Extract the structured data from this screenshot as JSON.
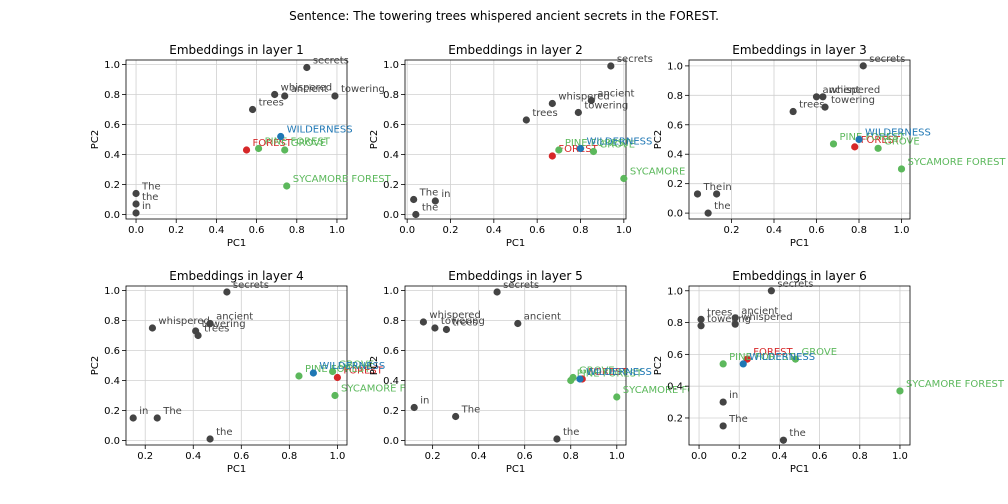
{
  "suptitle": "Sentence: The towering trees whispered ancient secrets in the FOREST.",
  "colors": {
    "other": "#444444",
    "target": "#d62728",
    "related": "#5cb85c",
    "wilderness": "#1f77b4",
    "grid": "#d0d0d0"
  },
  "chart_data": [
    {
      "type": "scatter",
      "title": "Embeddings in layer 1",
      "xlabel": "PC1",
      "ylabel": "PC2",
      "xlim": [
        -0.05,
        1.05
      ],
      "ylim": [
        -0.03,
        1.03
      ],
      "xticks": [
        "0.0",
        "0.2",
        "0.4",
        "0.6",
        "0.8",
        "1.0"
      ],
      "yticks": [
        "0.0",
        "0.2",
        "0.4",
        "0.6",
        "0.8",
        "1.0"
      ],
      "grid": true,
      "points": [
        {
          "word": "The",
          "x": 0.0,
          "y": 0.14,
          "kind": "other"
        },
        {
          "word": "the",
          "x": 0.0,
          "y": 0.07,
          "kind": "other"
        },
        {
          "word": "in",
          "x": 0.0,
          "y": 0.01,
          "kind": "other"
        },
        {
          "word": "towering",
          "x": 0.99,
          "y": 0.79,
          "kind": "other"
        },
        {
          "word": "trees",
          "x": 0.58,
          "y": 0.7,
          "kind": "other"
        },
        {
          "word": "whispered",
          "x": 0.69,
          "y": 0.8,
          "kind": "other"
        },
        {
          "word": "ancient",
          "x": 0.74,
          "y": 0.79,
          "kind": "other"
        },
        {
          "word": "secrets",
          "x": 0.85,
          "y": 0.98,
          "kind": "other"
        },
        {
          "word": "FOREST",
          "x": 0.55,
          "y": 0.43,
          "kind": "target"
        },
        {
          "word": "PINE FOREST",
          "x": 0.61,
          "y": 0.44,
          "kind": "related"
        },
        {
          "word": "GROVE",
          "x": 0.74,
          "y": 0.43,
          "kind": "related"
        },
        {
          "word": "WILDERNESS",
          "x": 0.72,
          "y": 0.52,
          "kind": "wilderness"
        },
        {
          "word": "SYCAMORE FOREST",
          "x": 0.75,
          "y": 0.19,
          "kind": "related"
        }
      ]
    },
    {
      "type": "scatter",
      "title": "Embeddings in layer 2",
      "xlabel": "PC1",
      "ylabel": "PC2",
      "xlim": [
        -0.01,
        1.01
      ],
      "ylim": [
        -0.03,
        1.03
      ],
      "xticks": [
        "0.0",
        "0.2",
        "0.4",
        "0.6",
        "0.8",
        "1.0"
      ],
      "yticks": [
        "0.0",
        "0.2",
        "0.4",
        "0.6",
        "0.8",
        "1.0"
      ],
      "grid": true,
      "points": [
        {
          "word": "The",
          "x": 0.03,
          "y": 0.1,
          "kind": "other"
        },
        {
          "word": "in",
          "x": 0.13,
          "y": 0.09,
          "kind": "other"
        },
        {
          "word": "the",
          "x": 0.04,
          "y": 0.0,
          "kind": "other"
        },
        {
          "word": "trees",
          "x": 0.55,
          "y": 0.63,
          "kind": "other"
        },
        {
          "word": "whispered",
          "x": 0.67,
          "y": 0.74,
          "kind": "other"
        },
        {
          "word": "ancient",
          "x": 0.85,
          "y": 0.76,
          "kind": "other"
        },
        {
          "word": "towering",
          "x": 0.79,
          "y": 0.68,
          "kind": "other"
        },
        {
          "word": "secrets",
          "x": 0.94,
          "y": 0.99,
          "kind": "other"
        },
        {
          "word": "FOREST",
          "x": 0.67,
          "y": 0.39,
          "kind": "target"
        },
        {
          "word": "PINE FOREST",
          "x": 0.7,
          "y": 0.43,
          "kind": "related"
        },
        {
          "word": "GROVE",
          "x": 0.86,
          "y": 0.42,
          "kind": "related"
        },
        {
          "word": "WILDERNESS",
          "x": 0.8,
          "y": 0.44,
          "kind": "wilderness"
        },
        {
          "word": "SYCAMORE FOREST",
          "x": 1.0,
          "y": 0.24,
          "kind": "related"
        }
      ]
    },
    {
      "type": "scatter",
      "title": "Embeddings in layer 3",
      "xlabel": "PC1",
      "ylabel": "PC2",
      "xlim": [
        0.0,
        1.04
      ],
      "ylim": [
        -0.04,
        1.04
      ],
      "xticks": [
        "0.2",
        "0.4",
        "0.6",
        "0.8",
        "1.0"
      ],
      "yticks": [
        "0.0",
        "0.2",
        "0.4",
        "0.6",
        "0.8",
        "1.0"
      ],
      "grid": true,
      "points": [
        {
          "word": "The",
          "x": 0.04,
          "y": 0.13,
          "kind": "other"
        },
        {
          "word": "in",
          "x": 0.13,
          "y": 0.13,
          "kind": "other"
        },
        {
          "word": "the",
          "x": 0.09,
          "y": 0.0,
          "kind": "other"
        },
        {
          "word": "trees",
          "x": 0.49,
          "y": 0.69,
          "kind": "other"
        },
        {
          "word": "ancient",
          "x": 0.6,
          "y": 0.79,
          "kind": "other"
        },
        {
          "word": "whispered",
          "x": 0.63,
          "y": 0.79,
          "kind": "other"
        },
        {
          "word": "towering",
          "x": 0.64,
          "y": 0.72,
          "kind": "other"
        },
        {
          "word": "secrets",
          "x": 0.82,
          "y": 1.0,
          "kind": "other"
        },
        {
          "word": "FOREST",
          "x": 0.78,
          "y": 0.45,
          "kind": "target"
        },
        {
          "word": "PINE FOREST",
          "x": 0.68,
          "y": 0.47,
          "kind": "related"
        },
        {
          "word": "GROVE",
          "x": 0.89,
          "y": 0.44,
          "kind": "related"
        },
        {
          "word": "WILDERNESS",
          "x": 0.8,
          "y": 0.5,
          "kind": "wilderness"
        },
        {
          "word": "SYCAMORE FOREST",
          "x": 1.0,
          "y": 0.3,
          "kind": "related"
        }
      ]
    },
    {
      "type": "scatter",
      "title": "Embeddings in layer 4",
      "xlabel": "PC1",
      "ylabel": "PC2",
      "xlim": [
        0.12,
        1.04
      ],
      "ylim": [
        -0.03,
        1.03
      ],
      "xticks": [
        "0.2",
        "0.4",
        "0.6",
        "0.8",
        "1.0"
      ],
      "yticks": [
        "0.0",
        "0.2",
        "0.4",
        "0.6",
        "0.8",
        "1.0"
      ],
      "grid": true,
      "points": [
        {
          "word": "in",
          "x": 0.15,
          "y": 0.15,
          "kind": "other"
        },
        {
          "word": "The",
          "x": 0.25,
          "y": 0.15,
          "kind": "other"
        },
        {
          "word": "the",
          "x": 0.47,
          "y": 0.01,
          "kind": "other"
        },
        {
          "word": "whispered",
          "x": 0.23,
          "y": 0.75,
          "kind": "other"
        },
        {
          "word": "ancient",
          "x": 0.47,
          "y": 0.78,
          "kind": "other"
        },
        {
          "word": "towering",
          "x": 0.41,
          "y": 0.73,
          "kind": "other"
        },
        {
          "word": "trees",
          "x": 0.42,
          "y": 0.7,
          "kind": "other"
        },
        {
          "word": "secrets",
          "x": 0.54,
          "y": 0.99,
          "kind": "other"
        },
        {
          "word": "FOREST",
          "x": 1.0,
          "y": 0.42,
          "kind": "target"
        },
        {
          "word": "PINE FOREST",
          "x": 0.84,
          "y": 0.43,
          "kind": "related"
        },
        {
          "word": "GROVE",
          "x": 0.98,
          "y": 0.46,
          "kind": "related"
        },
        {
          "word": "WILDERNESS",
          "x": 0.9,
          "y": 0.45,
          "kind": "wilderness"
        },
        {
          "word": "SYCAMORE FOREST",
          "x": 0.99,
          "y": 0.3,
          "kind": "related"
        }
      ]
    },
    {
      "type": "scatter",
      "title": "Embeddings in layer 5",
      "xlabel": "PC1",
      "ylabel": "PC2",
      "xlim": [
        0.08,
        1.04
      ],
      "ylim": [
        -0.03,
        1.03
      ],
      "xticks": [
        "0.2",
        "0.4",
        "0.6",
        "0.8",
        "1.0"
      ],
      "yticks": [
        "0.0",
        "0.2",
        "0.4",
        "0.6",
        "0.8",
        "1.0"
      ],
      "grid": true,
      "points": [
        {
          "word": "in",
          "x": 0.12,
          "y": 0.22,
          "kind": "other"
        },
        {
          "word": "The",
          "x": 0.3,
          "y": 0.16,
          "kind": "other"
        },
        {
          "word": "the",
          "x": 0.74,
          "y": 0.01,
          "kind": "other"
        },
        {
          "word": "whispered",
          "x": 0.16,
          "y": 0.79,
          "kind": "other"
        },
        {
          "word": "towering",
          "x": 0.21,
          "y": 0.75,
          "kind": "other"
        },
        {
          "word": "trees",
          "x": 0.26,
          "y": 0.74,
          "kind": "other"
        },
        {
          "word": "ancient",
          "x": 0.57,
          "y": 0.78,
          "kind": "other"
        },
        {
          "word": "secrets",
          "x": 0.48,
          "y": 0.99,
          "kind": "other"
        },
        {
          "word": "FOREST",
          "x": 0.85,
          "y": 0.41,
          "kind": "target"
        },
        {
          "word": "PINE FOREST",
          "x": 0.8,
          "y": 0.4,
          "kind": "related"
        },
        {
          "word": "GROVE",
          "x": 0.81,
          "y": 0.42,
          "kind": "related"
        },
        {
          "word": "WILDERNESS",
          "x": 0.84,
          "y": 0.41,
          "kind": "wilderness"
        },
        {
          "word": "SYCAMORE FOREST",
          "x": 1.0,
          "y": 0.29,
          "kind": "related"
        }
      ]
    },
    {
      "type": "scatter",
      "title": "Embeddings in layer 6",
      "xlabel": "PC1",
      "ylabel": "PC2",
      "xlim": [
        -0.05,
        1.05
      ],
      "ylim": [
        0.03,
        1.03
      ],
      "xticks": [
        "0.0",
        "0.2",
        "0.4",
        "0.6",
        "0.8",
        "1.0"
      ],
      "yticks": [
        "0.2",
        "0.4",
        "0.6",
        "0.8",
        "1.0"
      ],
      "grid": true,
      "points": [
        {
          "word": "in",
          "x": 0.12,
          "y": 0.3,
          "kind": "other"
        },
        {
          "word": "The",
          "x": 0.12,
          "y": 0.15,
          "kind": "other"
        },
        {
          "word": "the",
          "x": 0.42,
          "y": 0.06,
          "kind": "other"
        },
        {
          "word": "trees",
          "x": 0.01,
          "y": 0.82,
          "kind": "other"
        },
        {
          "word": "towering",
          "x": 0.01,
          "y": 0.78,
          "kind": "other"
        },
        {
          "word": "ancient",
          "x": 0.18,
          "y": 0.83,
          "kind": "other"
        },
        {
          "word": "whispered",
          "x": 0.18,
          "y": 0.79,
          "kind": "other"
        },
        {
          "word": "secrets",
          "x": 0.36,
          "y": 1.0,
          "kind": "other"
        },
        {
          "word": "FOREST",
          "x": 0.24,
          "y": 0.57,
          "kind": "target"
        },
        {
          "word": "PINE FOREST",
          "x": 0.12,
          "y": 0.54,
          "kind": "related"
        },
        {
          "word": "GROVE",
          "x": 0.48,
          "y": 0.57,
          "kind": "related"
        },
        {
          "word": "WILDERNESS",
          "x": 0.22,
          "y": 0.54,
          "kind": "wilderness"
        },
        {
          "word": "SYCAMORE FOREST",
          "x": 1.0,
          "y": 0.37,
          "kind": "related"
        }
      ]
    }
  ]
}
